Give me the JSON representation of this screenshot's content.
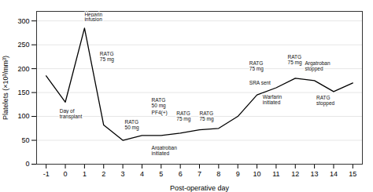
{
  "chart_data": {
    "type": "line",
    "xlabel": "Post-operative day",
    "ylabel": "Platelets (×10³/mm³)",
    "x": [
      -1,
      0,
      1,
      2,
      3,
      4,
      5,
      6,
      7,
      8,
      9,
      10,
      11,
      12,
      13,
      14,
      15
    ],
    "values": [
      185,
      130,
      285,
      82,
      50,
      60,
      60,
      65,
      72,
      75,
      100,
      145,
      160,
      180,
      175,
      152,
      170
    ],
    "color": "#000000",
    "xlim": [
      -1.5,
      15.5
    ],
    "ylim": [
      0,
      320
    ],
    "xticks": [
      -1,
      0,
      1,
      2,
      3,
      4,
      5,
      6,
      7,
      8,
      9,
      10,
      11,
      12,
      13,
      14,
      15
    ],
    "yticks": [
      0,
      50,
      100,
      150,
      200,
      250,
      300
    ],
    "grid": true,
    "annotations": [
      {
        "text": "Heparin\ninfusion",
        "x": 1.0,
        "y": 308
      },
      {
        "text": "Day of\ntransplant",
        "x": -0.3,
        "y": 106
      },
      {
        "text": "RATG\n75 mg",
        "x": 1.8,
        "y": 225
      },
      {
        "text": "RATG\n50 mg",
        "x": 3.1,
        "y": 83
      },
      {
        "text": "RATG\n50 mg",
        "x": 4.5,
        "y": 128
      },
      {
        "text": "PF4(+)",
        "x": 4.5,
        "y": 108
      },
      {
        "text": "Argatroban\ninitiated",
        "x": 4.5,
        "y": 28
      },
      {
        "text": "RATG\n75 mg",
        "x": 5.8,
        "y": 100
      },
      {
        "text": "RATG\n75 mg",
        "x": 7.0,
        "y": 100
      },
      {
        "text": "RATG\n75 mg",
        "x": 9.6,
        "y": 205
      },
      {
        "text": "SRA sent",
        "x": 9.6,
        "y": 170
      },
      {
        "text": "Warfarin\ninitiated",
        "x": 10.3,
        "y": 135
      },
      {
        "text": "RATG\n75 mg",
        "x": 11.6,
        "y": 218
      },
      {
        "text": "Argatroban\nstopped",
        "x": 12.5,
        "y": 205
      },
      {
        "text": "RATG\nstopped",
        "x": 13.1,
        "y": 133
      }
    ]
  }
}
